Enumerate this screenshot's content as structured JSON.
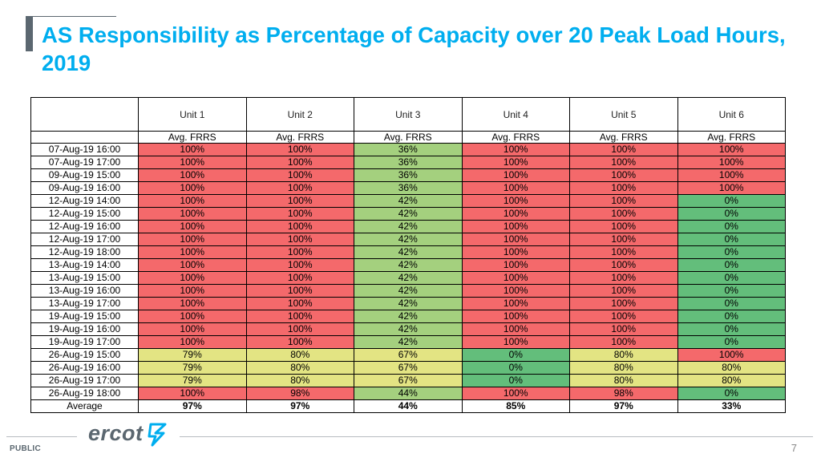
{
  "title": "AS Responsibility as Percentage of Capacity over 20 Peak Load Hours, 2019",
  "colors": {
    "red": "#f4696b",
    "green": "#63be7b",
    "lightgreen": "#a4d07e",
    "yellow": "#e3e483",
    "title": "#00aeef",
    "gray": "#5b6770"
  },
  "table": {
    "units": [
      "Unit 1",
      "Unit 2",
      "Unit 3",
      "Unit 4",
      "Unit 5",
      "Unit 6"
    ],
    "metric": "Avg. FRRS",
    "rows": [
      {
        "date": "07-Aug-19 16:00",
        "values": [
          "100%",
          "100%",
          "36%",
          "100%",
          "100%",
          "100%"
        ],
        "colors": [
          "red",
          "red",
          "lightgreen",
          "red",
          "red",
          "red"
        ]
      },
      {
        "date": "07-Aug-19 17:00",
        "values": [
          "100%",
          "100%",
          "36%",
          "100%",
          "100%",
          "100%"
        ],
        "colors": [
          "red",
          "red",
          "lightgreen",
          "red",
          "red",
          "red"
        ]
      },
      {
        "date": "09-Aug-19 15:00",
        "values": [
          "100%",
          "100%",
          "36%",
          "100%",
          "100%",
          "100%"
        ],
        "colors": [
          "red",
          "red",
          "lightgreen",
          "red",
          "red",
          "red"
        ]
      },
      {
        "date": "09-Aug-19 16:00",
        "values": [
          "100%",
          "100%",
          "36%",
          "100%",
          "100%",
          "100%"
        ],
        "colors": [
          "red",
          "red",
          "lightgreen",
          "red",
          "red",
          "red"
        ]
      },
      {
        "date": "12-Aug-19 14:00",
        "values": [
          "100%",
          "100%",
          "42%",
          "100%",
          "100%",
          "0%"
        ],
        "colors": [
          "red",
          "red",
          "lightgreen",
          "red",
          "red",
          "green"
        ]
      },
      {
        "date": "12-Aug-19 15:00",
        "values": [
          "100%",
          "100%",
          "42%",
          "100%",
          "100%",
          "0%"
        ],
        "colors": [
          "red",
          "red",
          "lightgreen",
          "red",
          "red",
          "green"
        ]
      },
      {
        "date": "12-Aug-19 16:00",
        "values": [
          "100%",
          "100%",
          "42%",
          "100%",
          "100%",
          "0%"
        ],
        "colors": [
          "red",
          "red",
          "lightgreen",
          "red",
          "red",
          "green"
        ]
      },
      {
        "date": "12-Aug-19 17:00",
        "values": [
          "100%",
          "100%",
          "42%",
          "100%",
          "100%",
          "0%"
        ],
        "colors": [
          "red",
          "red",
          "lightgreen",
          "red",
          "red",
          "green"
        ]
      },
      {
        "date": "12-Aug-19 18:00",
        "values": [
          "100%",
          "100%",
          "42%",
          "100%",
          "100%",
          "0%"
        ],
        "colors": [
          "red",
          "red",
          "lightgreen",
          "red",
          "red",
          "green"
        ]
      },
      {
        "date": "13-Aug-19 14:00",
        "values": [
          "100%",
          "100%",
          "42%",
          "100%",
          "100%",
          "0%"
        ],
        "colors": [
          "red",
          "red",
          "lightgreen",
          "red",
          "red",
          "green"
        ]
      },
      {
        "date": "13-Aug-19 15:00",
        "values": [
          "100%",
          "100%",
          "42%",
          "100%",
          "100%",
          "0%"
        ],
        "colors": [
          "red",
          "red",
          "lightgreen",
          "red",
          "red",
          "green"
        ]
      },
      {
        "date": "13-Aug-19 16:00",
        "values": [
          "100%",
          "100%",
          "42%",
          "100%",
          "100%",
          "0%"
        ],
        "colors": [
          "red",
          "red",
          "lightgreen",
          "red",
          "red",
          "green"
        ]
      },
      {
        "date": "13-Aug-19 17:00",
        "values": [
          "100%",
          "100%",
          "42%",
          "100%",
          "100%",
          "0%"
        ],
        "colors": [
          "red",
          "red",
          "lightgreen",
          "red",
          "red",
          "green"
        ]
      },
      {
        "date": "19-Aug-19 15:00",
        "values": [
          "100%",
          "100%",
          "42%",
          "100%",
          "100%",
          "0%"
        ],
        "colors": [
          "red",
          "red",
          "lightgreen",
          "red",
          "red",
          "green"
        ]
      },
      {
        "date": "19-Aug-19 16:00",
        "values": [
          "100%",
          "100%",
          "42%",
          "100%",
          "100%",
          "0%"
        ],
        "colors": [
          "red",
          "red",
          "lightgreen",
          "red",
          "red",
          "green"
        ]
      },
      {
        "date": "19-Aug-19 17:00",
        "values": [
          "100%",
          "100%",
          "42%",
          "100%",
          "100%",
          "0%"
        ],
        "colors": [
          "red",
          "red",
          "lightgreen",
          "red",
          "red",
          "green"
        ]
      },
      {
        "date": "26-Aug-19 15:00",
        "values": [
          "79%",
          "80%",
          "67%",
          "0%",
          "80%",
          "100%"
        ],
        "colors": [
          "yellow",
          "yellow",
          "yellow",
          "green",
          "yellow",
          "red"
        ]
      },
      {
        "date": "26-Aug-19 16:00",
        "values": [
          "79%",
          "80%",
          "67%",
          "0%",
          "80%",
          "80%"
        ],
        "colors": [
          "yellow",
          "yellow",
          "yellow",
          "green",
          "yellow",
          "yellow"
        ]
      },
      {
        "date": "26-Aug-19 17:00",
        "values": [
          "79%",
          "80%",
          "67%",
          "0%",
          "80%",
          "80%"
        ],
        "colors": [
          "yellow",
          "yellow",
          "yellow",
          "green",
          "yellow",
          "yellow"
        ]
      },
      {
        "date": "26-Aug-19 18:00",
        "values": [
          "100%",
          "98%",
          "44%",
          "100%",
          "98%",
          "0%"
        ],
        "colors": [
          "red",
          "red",
          "lightgreen",
          "red",
          "red",
          "green"
        ]
      }
    ],
    "average_label": "Average",
    "averages": [
      "97%",
      "97%",
      "44%",
      "85%",
      "97%",
      "33%"
    ]
  },
  "footer": {
    "classification": "PUBLIC",
    "logo_text": "ercot",
    "page_number": "7"
  }
}
